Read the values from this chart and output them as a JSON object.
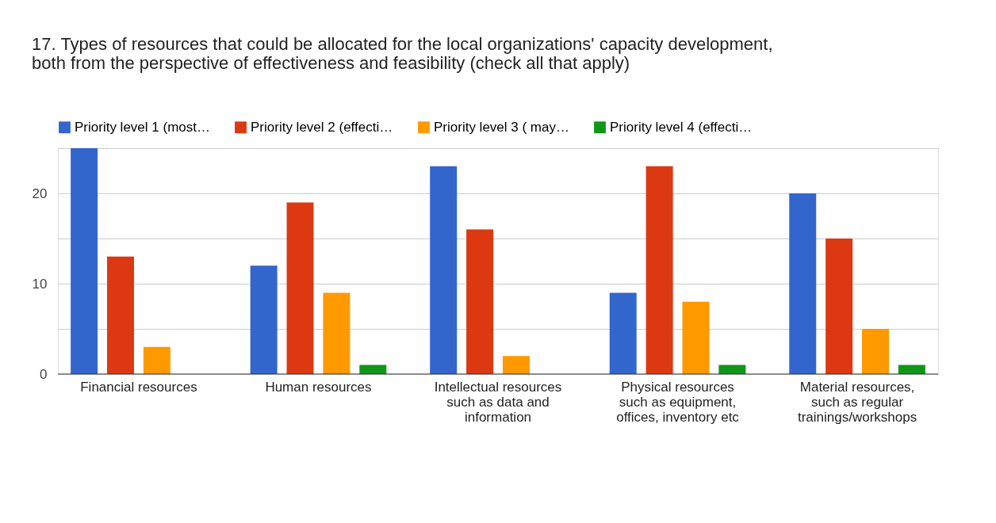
{
  "chart_data": {
    "type": "bar",
    "title": "17. Types of resources that could be allocated for the local organizations' capacity development, both from the perspective of effectiveness and feasibility (check all that apply)",
    "categories": [
      "Financial resources",
      "Human resources",
      "Intellectual resources such as data and information",
      "Physical resources such as equipment, offices, inventory etc",
      "Material resources, such as regular trainings/workshops"
    ],
    "series": [
      {
        "name": "Priority level 1 (most…",
        "color": "#3366cc",
        "values": [
          25,
          12,
          23,
          9,
          20
        ]
      },
      {
        "name": "Priority level 2 (effecti…",
        "color": "#dc3912",
        "values": [
          13,
          19,
          16,
          23,
          15
        ]
      },
      {
        "name": "Priority level 3 ( may…",
        "color": "#ff9900",
        "values": [
          3,
          9,
          2,
          8,
          5
        ]
      },
      {
        "name": "Priority level 4 (effecti…",
        "color": "#109618",
        "values": [
          0,
          1,
          0,
          1,
          1
        ]
      }
    ],
    "ylim": [
      0,
      25
    ],
    "yticks": [
      0,
      {
        "value": 5,
        "label": null
      },
      10,
      {
        "value": 15,
        "label": null
      },
      20,
      {
        "value": 25,
        "label": null
      }
    ],
    "grid": true,
    "legend": "top"
  }
}
